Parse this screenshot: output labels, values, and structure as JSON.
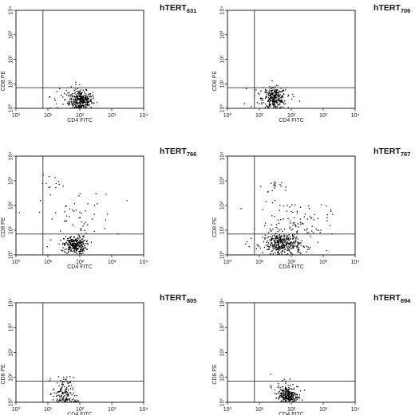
{
  "chart_data": [
    {
      "type": "scatter",
      "title_main": "hTERT",
      "title_sub": "631",
      "xlabel": "CD4 FITC",
      "ylabel": "CD8 PE",
      "xscale": "log",
      "yscale": "log",
      "xlim": [
        1,
        10000
      ],
      "ylim": [
        1,
        10000
      ],
      "xticks": [
        "10⁰",
        "10¹",
        "10²",
        "10³",
        "10⁴"
      ],
      "yticks": [
        "10⁰",
        "10¹",
        "10²",
        "10³",
        "10⁴"
      ],
      "gate": {
        "x": 7,
        "y": 7
      },
      "clusters": [
        {
          "x": 110,
          "y": 2,
          "spread_x": 0.18,
          "spread_y": 0.2,
          "count": 300
        },
        {
          "x": 60,
          "y": 3,
          "spread_x": 0.35,
          "spread_y": 0.25,
          "count": 60
        }
      ]
    },
    {
      "type": "scatter",
      "title_main": "hTERT",
      "title_sub": "706",
      "xlabel": "CD4 FITC",
      "ylabel": "CD8 PE",
      "xscale": "log",
      "yscale": "log",
      "xlim": [
        1,
        10000
      ],
      "ylim": [
        1,
        10000
      ],
      "xticks": [
        "10⁰",
        "10¹",
        "10²",
        "10³",
        "10⁴"
      ],
      "yticks": [
        "10⁰",
        "10¹",
        "10²",
        "10³",
        "10⁴"
      ],
      "gate": {
        "x": 7,
        "y": 7
      },
      "clusters": [
        {
          "x": 30,
          "y": 2.5,
          "spread_x": 0.18,
          "spread_y": 0.22,
          "count": 260
        },
        {
          "x": 20,
          "y": 3,
          "spread_x": 0.45,
          "spread_y": 0.3,
          "count": 40
        }
      ]
    },
    {
      "type": "scatter",
      "title_main": "hTERT",
      "title_sub": "766",
      "xlabel": "CD4 FITC",
      "ylabel": "CD8 PE",
      "xscale": "log",
      "yscale": "log",
      "xlim": [
        1,
        10000
      ],
      "ylim": [
        1,
        10000
      ],
      "xticks": [
        "10⁰",
        "10¹",
        "10²",
        "10³",
        "10⁴"
      ],
      "yticks": [
        "10⁰",
        "10¹",
        "10²",
        "10³",
        "10⁴"
      ],
      "gate": {
        "x": 7,
        "y": 7
      },
      "clusters": [
        {
          "x": 70,
          "y": 2.5,
          "spread_x": 0.17,
          "spread_y": 0.18,
          "count": 280
        },
        {
          "x": 80,
          "y": 30,
          "spread_x": 0.6,
          "spread_y": 0.6,
          "count": 60
        },
        {
          "x": 15,
          "y": 800,
          "spread_x": 0.2,
          "spread_y": 0.15,
          "count": 12
        }
      ]
    },
    {
      "type": "scatter",
      "title_main": "hTERT",
      "title_sub": "787",
      "xlabel": "CD4 FITC",
      "ylabel": "CD8 PE",
      "xscale": "log",
      "yscale": "log",
      "xlim": [
        1,
        10000
      ],
      "ylim": [
        1,
        10000
      ],
      "xticks": [
        "10⁰",
        "10¹",
        "10²",
        "10³",
        "10⁴"
      ],
      "yticks": [
        "10⁰",
        "10¹",
        "10²",
        "10³",
        "10⁴"
      ],
      "gate": {
        "x": 7,
        "y": 7
      },
      "clusters": [
        {
          "x": 50,
          "y": 2.5,
          "spread_x": 0.3,
          "spread_y": 0.25,
          "count": 340
        },
        {
          "x": 120,
          "y": 15,
          "spread_x": 0.55,
          "spread_y": 0.55,
          "count": 140
        },
        {
          "x": 25,
          "y": 600,
          "spread_x": 0.15,
          "spread_y": 0.12,
          "count": 15
        }
      ]
    },
    {
      "type": "scatter",
      "title_main": "hTERT",
      "title_sub": "805",
      "xlabel": "CD4 FITC",
      "ylabel": "CD8 PE",
      "xscale": "log",
      "yscale": "log",
      "xlim": [
        1,
        10000
      ],
      "ylim": [
        1,
        10000
      ],
      "xticks": [
        "10⁰",
        "10¹",
        "10²",
        "10³",
        "10⁴"
      ],
      "yticks": [
        "10⁰",
        "10¹",
        "10²",
        "10³",
        "10⁴"
      ],
      "gate": {
        "x": 7,
        "y": 7
      },
      "clusters": [
        {
          "x": 30,
          "y": 2.5,
          "spread_x": 0.16,
          "spread_y": 0.3,
          "count": 120
        },
        {
          "x": 40,
          "y": 1.1,
          "spread_x": 0.2,
          "spread_y": 0.05,
          "count": 40
        }
      ]
    },
    {
      "type": "scatter",
      "title_main": "hTERT",
      "title_sub": "894",
      "xlabel": "CD4 FITC",
      "ylabel": "CD8 PE",
      "xscale": "log",
      "yscale": "log",
      "xlim": [
        1,
        10000
      ],
      "ylim": [
        1,
        10000
      ],
      "xticks": [
        "10⁰",
        "10¹",
        "10²",
        "10³",
        "10⁴"
      ],
      "yticks": [
        "10⁰",
        "10¹",
        "10²",
        "10³",
        "10⁴"
      ],
      "gate": {
        "x": 7,
        "y": 7
      },
      "clusters": [
        {
          "x": 80,
          "y": 1.8,
          "spread_x": 0.16,
          "spread_y": 0.2,
          "count": 240
        },
        {
          "x": 60,
          "y": 3,
          "spread_x": 0.3,
          "spread_y": 0.3,
          "count": 40
        }
      ]
    }
  ]
}
